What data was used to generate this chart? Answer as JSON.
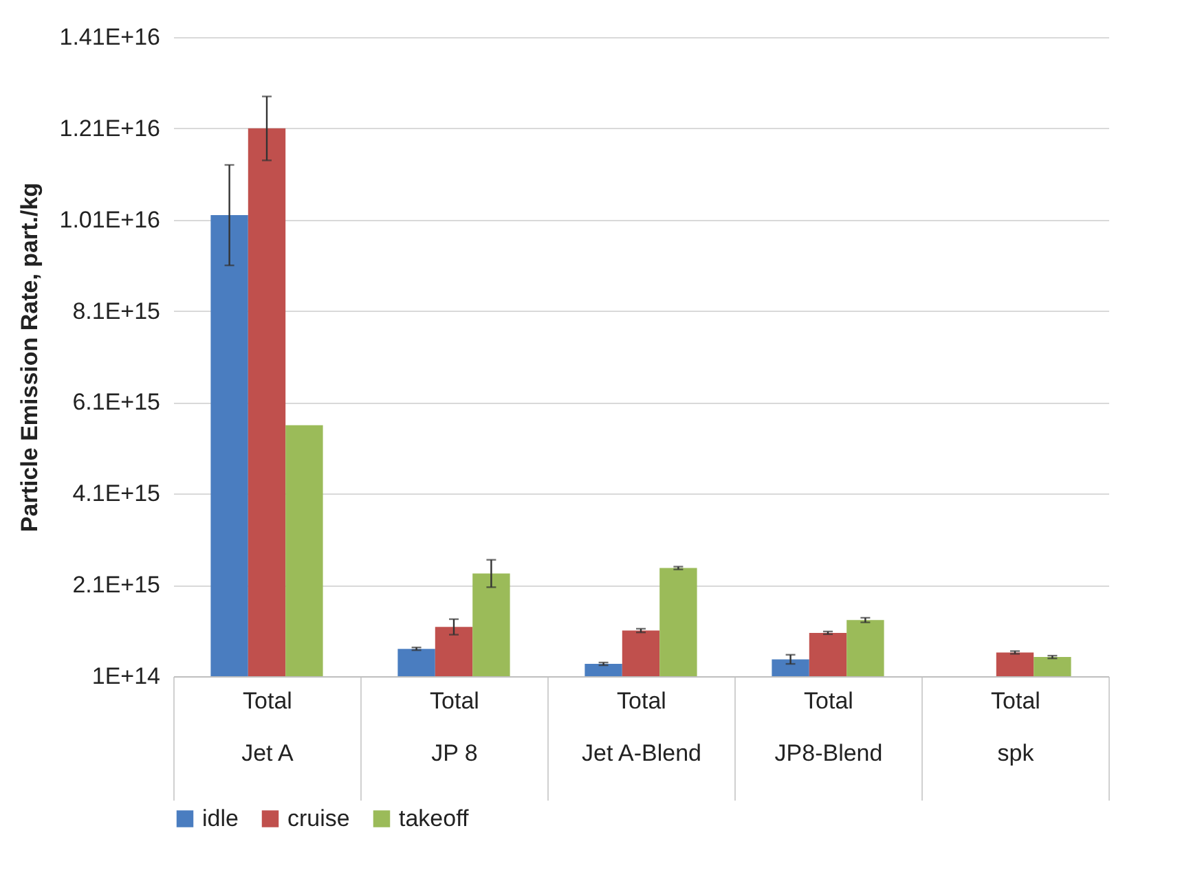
{
  "chart_data": {
    "type": "bar",
    "ylabel": "Particle Emission Rate, part./kg",
    "categories": [
      "Total\nJet A",
      "Total\nJP 8",
      "Total\nJet A-Blend",
      "Total\nJP8-Blend",
      "Total\nspk"
    ],
    "series": [
      {
        "name": "idle",
        "color": "#4a7dc0",
        "values": [
          1.02e+16,
          700000000000000.0,
          370000000000000.0,
          470000000000000.0,
          null
        ],
        "errors": [
          1100000000000000.0,
          30000000000000.0,
          30000000000000.0,
          100000000000000.0,
          null
        ]
      },
      {
        "name": "cruise",
        "color": "#c0504d",
        "values": [
          1.21e+16,
          1180000000000000.0,
          1100000000000000.0,
          1050000000000000.0,
          620000000000000.0
        ],
        "errors": [
          700000000000000.0,
          170000000000000.0,
          40000000000000.0,
          30000000000000.0,
          30000000000000.0
        ]
      },
      {
        "name": "takeoff",
        "color": "#9bbb59",
        "values": [
          5600000000000000.0,
          2350000000000000.0,
          2470000000000000.0,
          1330000000000000.0,
          520000000000000.0
        ],
        "errors": [
          null,
          300000000000000.0,
          30000000000000.0,
          50000000000000.0,
          30000000000000.0
        ]
      }
    ],
    "ylim": [
      100000000000000.0,
      1.41e+16
    ],
    "yticks": [
      {
        "value": 100000000000000.0,
        "label": "1E+14"
      },
      {
        "value": 2100000000000000.0,
        "label": "2.1E+15"
      },
      {
        "value": 4100000000000000.0,
        "label": "4.1E+15"
      },
      {
        "value": 6100000000000000.0,
        "label": "6.1E+15"
      },
      {
        "value": 8100000000000000.0,
        "label": "8.1E+15"
      },
      {
        "value": 1.01e+16,
        "label": "1.01E+16"
      },
      {
        "value": 1.21e+16,
        "label": "1.21E+16"
      },
      {
        "value": 1.41e+16,
        "label": "1.41E+16"
      }
    ],
    "grid": "y",
    "legend": "bottom"
  }
}
